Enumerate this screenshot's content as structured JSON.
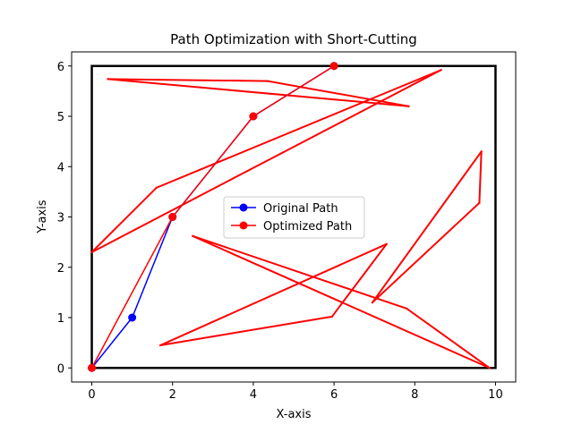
{
  "chart_data": {
    "type": "line",
    "title": "Path Optimization with Short-Cutting",
    "xlabel": "X-axis",
    "ylabel": "Y-axis",
    "xlim": [
      -0.5,
      10.5
    ],
    "ylim": [
      -0.28,
      6.28
    ],
    "xticks": [
      0,
      2,
      4,
      6,
      8,
      10
    ],
    "yticks": [
      0,
      1,
      2,
      3,
      4,
      5,
      6
    ],
    "grid": false,
    "legend_position": "center",
    "boundary": [
      [
        0,
        0
      ],
      [
        10,
        0
      ],
      [
        10,
        6
      ],
      [
        0,
        6
      ],
      [
        0,
        0
      ]
    ],
    "boundary_color": "#000000",
    "series": [
      {
        "name": "Original Path",
        "color": "#0000ff",
        "marker": "circle",
        "points": [
          [
            0,
            0
          ],
          [
            1,
            1
          ],
          [
            2,
            3
          ],
          [
            4,
            5
          ],
          [
            6,
            6
          ]
        ]
      },
      {
        "name": "Optimized Path",
        "color": "#ff0000",
        "marker": "circle",
        "points": [
          [
            0,
            0
          ],
          [
            2,
            3
          ],
          [
            4,
            5
          ],
          [
            6,
            6
          ]
        ]
      }
    ],
    "obstacle_lines": {
      "color": "#ff0000",
      "segments": [
        [
          [
            0.4,
            5.74
          ],
          [
            4.35,
            5.7
          ]
        ],
        [
          [
            4.35,
            5.7
          ],
          [
            7.85,
            5.2
          ]
        ],
        [
          [
            7.85,
            5.2
          ],
          [
            0.4,
            5.74
          ]
        ],
        [
          [
            0.0,
            2.3
          ],
          [
            1.6,
            3.58
          ]
        ],
        [
          [
            1.6,
            3.58
          ],
          [
            8.65,
            5.92
          ]
        ],
        [
          [
            8.65,
            5.92
          ],
          [
            0.0,
            2.3
          ]
        ],
        [
          [
            6.95,
            1.3
          ],
          [
            9.65,
            4.3
          ]
        ],
        [
          [
            9.65,
            4.3
          ],
          [
            9.6,
            3.28
          ]
        ],
        [
          [
            9.6,
            3.28
          ],
          [
            6.95,
            1.3
          ]
        ],
        [
          [
            2.5,
            2.62
          ],
          [
            7.8,
            1.18
          ]
        ],
        [
          [
            7.8,
            1.18
          ],
          [
            9.85,
            0.0
          ]
        ],
        [
          [
            9.85,
            0.0
          ],
          [
            2.5,
            2.62
          ]
        ],
        [
          [
            1.7,
            0.45
          ],
          [
            7.3,
            2.46
          ]
        ],
        [
          [
            7.3,
            2.46
          ],
          [
            5.95,
            1.02
          ]
        ],
        [
          [
            5.95,
            1.02
          ],
          [
            1.7,
            0.45
          ]
        ]
      ]
    }
  }
}
